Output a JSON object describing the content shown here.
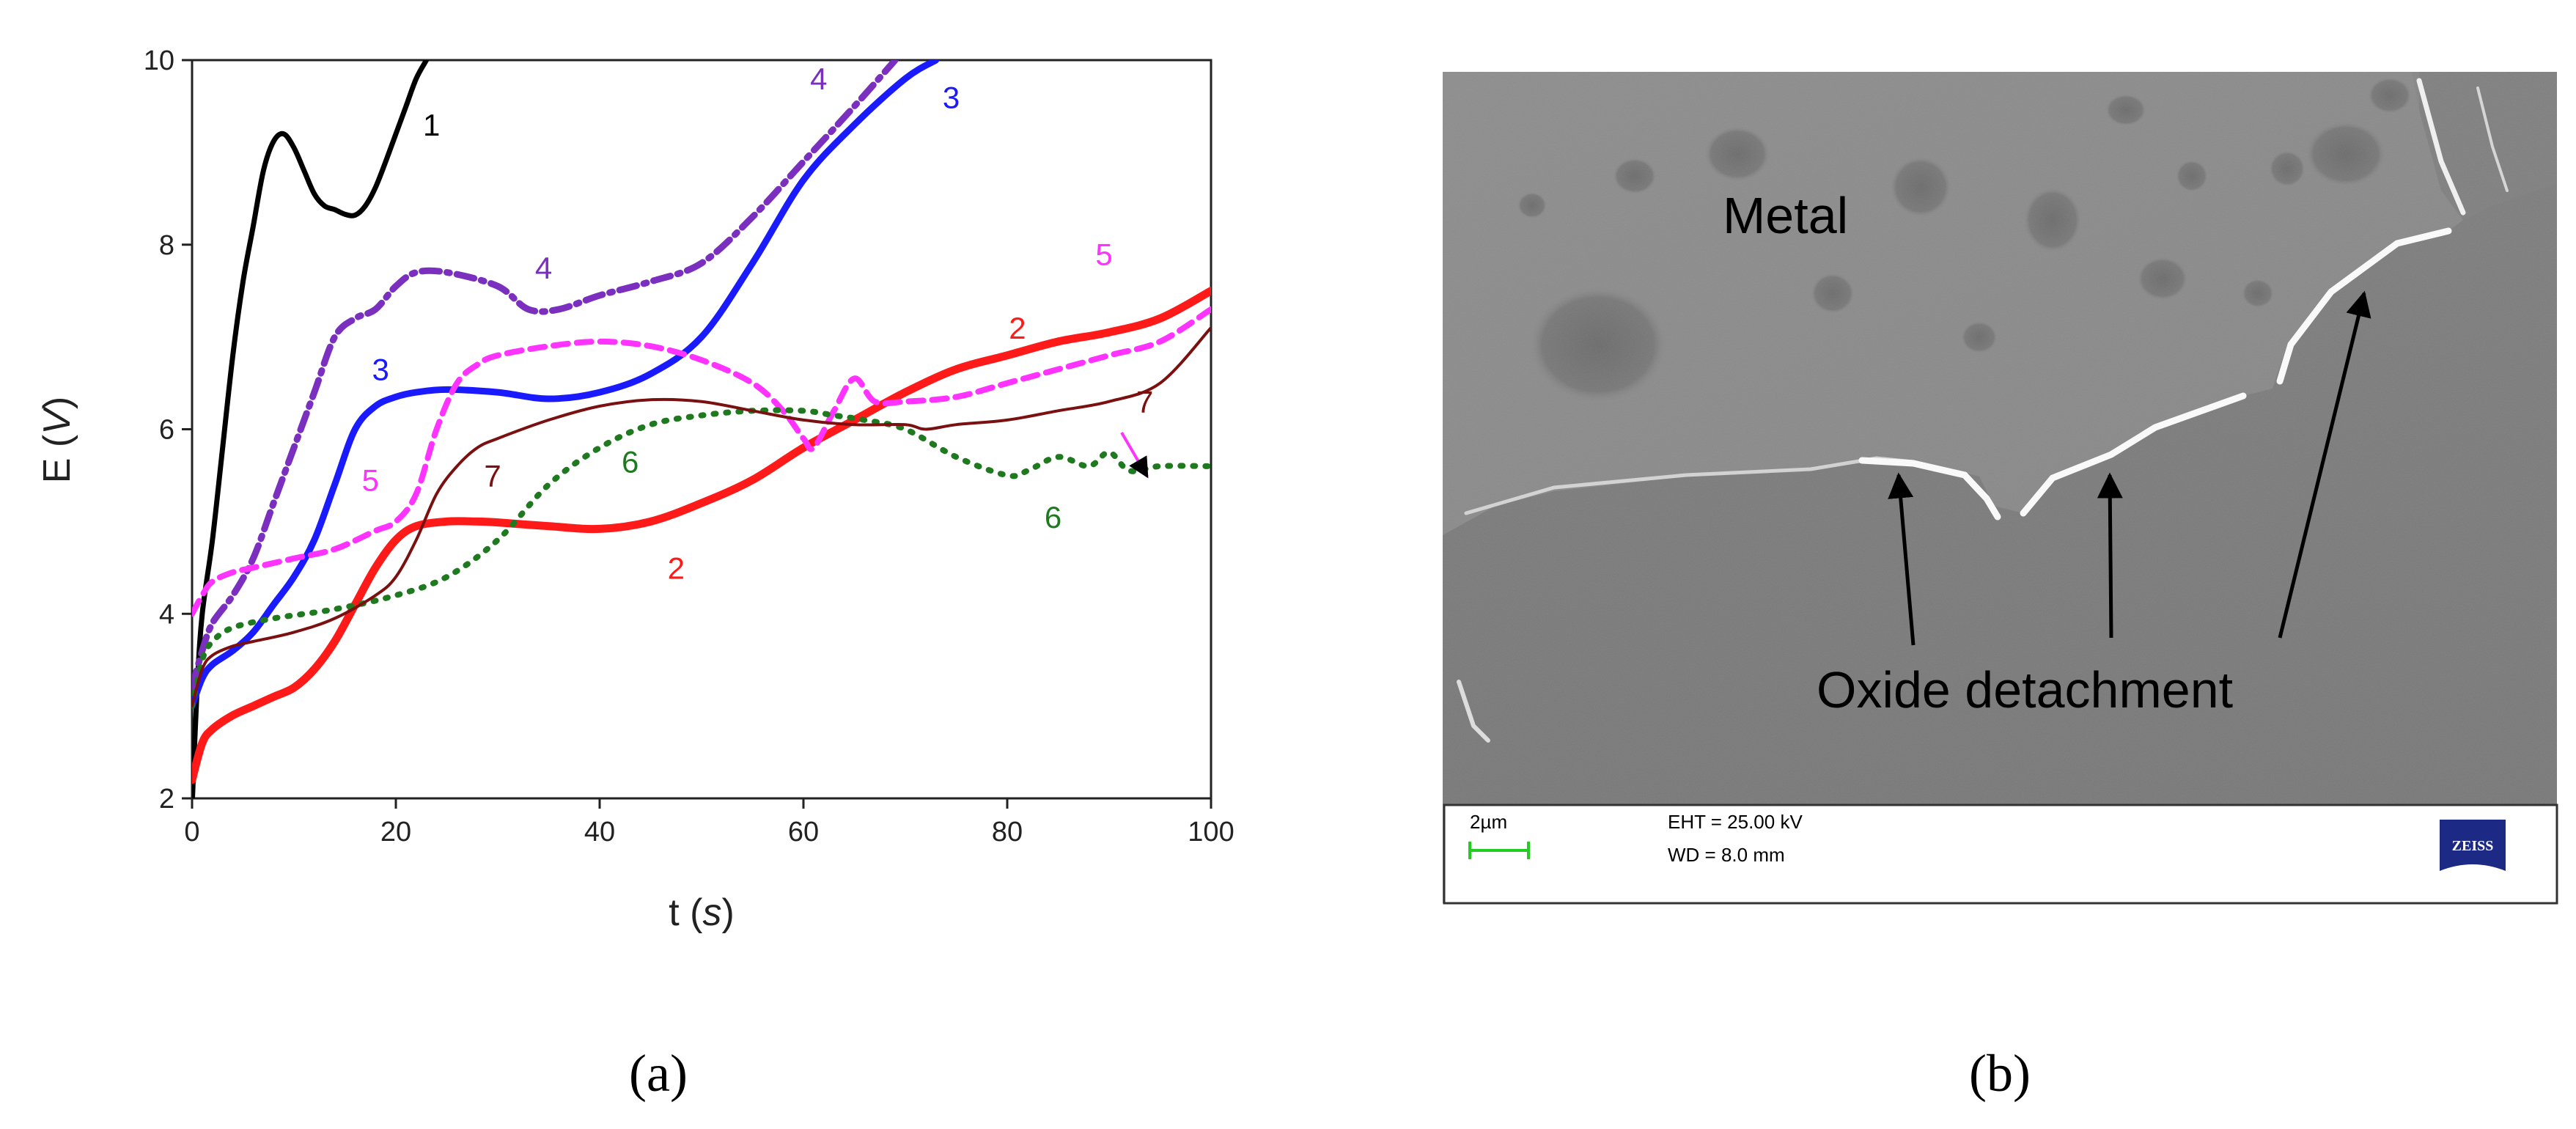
{
  "chart_data": {
    "type": "line",
    "xlabel": "t",
    "xlabel_unit": "s",
    "ylabel": "E",
    "ylabel_unit": "V",
    "xlim": [
      0,
      100
    ],
    "ylim": [
      2,
      10
    ],
    "x_ticks": [
      0,
      20,
      40,
      60,
      80,
      100
    ],
    "y_ticks": [
      2,
      4,
      6,
      8,
      10
    ],
    "grid": false,
    "series": [
      {
        "name": "1",
        "color": "#000000",
        "style": "solid",
        "width": 7,
        "x": [
          0,
          0.5,
          1,
          2,
          3,
          4,
          5,
          6,
          7,
          8,
          9,
          10,
          11,
          12,
          13,
          14,
          15,
          16,
          17,
          18,
          19,
          20,
          21,
          22,
          23
        ],
        "y": [
          1.9,
          3.2,
          4.0,
          4.8,
          5.8,
          6.8,
          7.6,
          8.2,
          8.8,
          9.12,
          9.2,
          9.05,
          8.8,
          8.55,
          8.42,
          8.38,
          8.33,
          8.32,
          8.42,
          8.62,
          8.9,
          9.2,
          9.5,
          9.8,
          10.0
        ]
      },
      {
        "name": "2",
        "color": "#ff1a1a",
        "style": "solid",
        "width": 11,
        "x": [
          0,
          1,
          2,
          4,
          6,
          8,
          10,
          12,
          14,
          16,
          18,
          20,
          22,
          25,
          28,
          30,
          35,
          40,
          45,
          50,
          55,
          60,
          65,
          70,
          75,
          80,
          85,
          90,
          95,
          100
        ],
        "y": [
          2.2,
          2.6,
          2.75,
          2.9,
          3.0,
          3.1,
          3.2,
          3.4,
          3.7,
          4.1,
          4.5,
          4.8,
          4.95,
          5.0,
          5.0,
          4.99,
          4.95,
          4.92,
          5.0,
          5.2,
          5.45,
          5.8,
          6.1,
          6.4,
          6.65,
          6.8,
          6.95,
          7.05,
          7.2,
          7.5
        ]
      },
      {
        "name": "3",
        "color": "#1a1aff",
        "style": "solid",
        "width": 9,
        "x": [
          0,
          1,
          2,
          4,
          6,
          8,
          10,
          12,
          14,
          16,
          18,
          20,
          22,
          25,
          30,
          35,
          40,
          45,
          50,
          55,
          60,
          65,
          70,
          73
        ],
        "y": [
          3.0,
          3.3,
          3.45,
          3.6,
          3.8,
          4.1,
          4.4,
          4.8,
          5.4,
          6.0,
          6.25,
          6.35,
          6.4,
          6.43,
          6.4,
          6.33,
          6.4,
          6.6,
          7.0,
          7.8,
          8.7,
          9.3,
          9.8,
          10.0
        ]
      },
      {
        "name": "4",
        "color": "#7b2fbe",
        "style": "dashdot",
        "width": 9,
        "x": [
          0,
          1,
          2,
          4,
          6,
          8,
          10,
          12,
          14,
          16,
          18,
          20,
          22,
          25,
          30,
          33,
          36,
          40,
          45,
          50,
          55,
          60,
          65,
          69
        ],
        "y": [
          3.2,
          3.6,
          3.9,
          4.2,
          4.6,
          5.2,
          5.8,
          6.4,
          7.0,
          7.2,
          7.3,
          7.55,
          7.7,
          7.7,
          7.55,
          7.3,
          7.3,
          7.45,
          7.6,
          7.8,
          8.3,
          8.9,
          9.5,
          10.0
        ]
      },
      {
        "name": "5",
        "color": "#ff33ff",
        "style": "dash",
        "width": 8,
        "x": [
          0,
          1,
          2,
          4,
          6,
          10,
          14,
          18,
          20,
          22,
          24,
          26,
          28,
          30,
          35,
          40,
          45,
          50,
          55,
          58,
          60,
          61,
          63,
          65,
          67,
          70,
          75,
          80,
          85,
          90,
          95,
          100
        ],
        "y": [
          4.0,
          4.2,
          4.35,
          4.45,
          4.5,
          4.6,
          4.7,
          4.9,
          5.0,
          5.3,
          6.0,
          6.5,
          6.7,
          6.8,
          6.9,
          6.95,
          6.9,
          6.75,
          6.5,
          6.2,
          5.9,
          5.8,
          6.2,
          6.55,
          6.3,
          6.3,
          6.35,
          6.5,
          6.65,
          6.8,
          6.95,
          7.3
        ]
      },
      {
        "name": "6",
        "color": "#1f7a1f",
        "style": "dot",
        "width": 8,
        "x": [
          0,
          1,
          2,
          4,
          8,
          14,
          20,
          25,
          30,
          35,
          40,
          45,
          50,
          55,
          60,
          63,
          66,
          70,
          75,
          80,
          82,
          85,
          88,
          90,
          92,
          95,
          100
        ],
        "y": [
          3.0,
          3.5,
          3.7,
          3.85,
          3.95,
          4.05,
          4.2,
          4.4,
          4.8,
          5.4,
          5.8,
          6.05,
          6.15,
          6.2,
          6.2,
          6.15,
          6.1,
          6.0,
          5.7,
          5.5,
          5.55,
          5.7,
          5.6,
          5.75,
          5.55,
          5.6,
          5.6
        ]
      },
      {
        "name": "7",
        "color": "#7a1010",
        "style": "solid",
        "width": 4,
        "x": [
          0,
          1,
          2,
          4,
          6,
          10,
          14,
          18,
          20,
          22,
          24,
          26,
          28,
          30,
          35,
          40,
          45,
          50,
          55,
          60,
          65,
          70,
          72,
          75,
          80,
          85,
          90,
          95,
          100
        ],
        "y": [
          3.0,
          3.4,
          3.55,
          3.65,
          3.7,
          3.8,
          3.95,
          4.2,
          4.4,
          4.8,
          5.3,
          5.6,
          5.8,
          5.9,
          6.1,
          6.25,
          6.32,
          6.3,
          6.2,
          6.1,
          6.05,
          6.05,
          6.0,
          6.05,
          6.1,
          6.2,
          6.3,
          6.5,
          7.1
        ]
      }
    ],
    "annotations": [
      {
        "text": "1",
        "x": 23.5,
        "y": 9.3,
        "color": "#000000"
      },
      {
        "text": "2",
        "x": 81,
        "y": 7.1,
        "color": "#ff1a1a"
      },
      {
        "text": "2",
        "x": 47.5,
        "y": 4.5,
        "color": "#ff1a1a"
      },
      {
        "text": "3",
        "x": 74.5,
        "y": 9.6,
        "color": "#1a1aff"
      },
      {
        "text": "3",
        "x": 18.5,
        "y": 6.65,
        "color": "#1a1aff"
      },
      {
        "text": "4",
        "x": 61.5,
        "y": 9.8,
        "color": "#7b2fbe"
      },
      {
        "text": "4",
        "x": 34.5,
        "y": 7.75,
        "color": "#7b2fbe"
      },
      {
        "text": "5",
        "x": 89.5,
        "y": 7.9,
        "color": "#ff33ff"
      },
      {
        "text": "5",
        "x": 17.5,
        "y": 5.45,
        "color": "#ff33ff"
      },
      {
        "text": "6",
        "x": 43,
        "y": 5.65,
        "color": "#1f7a1f"
      },
      {
        "text": "6",
        "x": 84.5,
        "y": 5.05,
        "color": "#1f7a1f"
      },
      {
        "text": "7",
        "x": 29.5,
        "y": 5.5,
        "color": "#7a1010"
      },
      {
        "text": "7",
        "x": 93.5,
        "y": 6.3,
        "color": "#7a1010"
      }
    ]
  },
  "sem_image": {
    "label_metal": "Metal",
    "label_oxide": "Oxide detachment",
    "databar": {
      "scale_label": "2µm",
      "eht": "EHT = 25.00 kV",
      "wd": "WD =  8.0 mm",
      "logo": "ZEISS"
    }
  },
  "captions": {
    "a": "(a)",
    "b": "(b)"
  }
}
